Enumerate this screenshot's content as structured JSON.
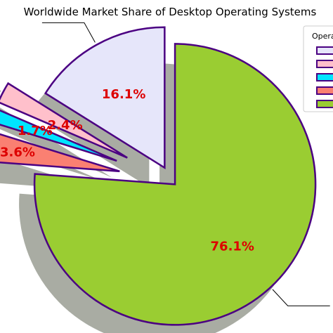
{
  "chart_data": {
    "type": "pie",
    "title": "Worldwide Market Share of Desktop Operating Systems",
    "labels": [
      "",
      "",
      "",
      "",
      ""
    ],
    "values": [
      16.1,
      2.4,
      1.7,
      3.6,
      76.1
    ],
    "value_labels": [
      "16.1%",
      "2.4%",
      "1.7%",
      "3.6%",
      "76.1%"
    ],
    "colors": [
      "#e6e6fa",
      "#ffc0cb",
      "#00e5ff",
      "#fa8072",
      "#9acd32"
    ],
    "edge_color": "#4b0082",
    "label_color": "#dd0000",
    "exploded": true,
    "shadow": true,
    "legend": {
      "title": "Operating Systems",
      "placement": "top-right"
    }
  }
}
